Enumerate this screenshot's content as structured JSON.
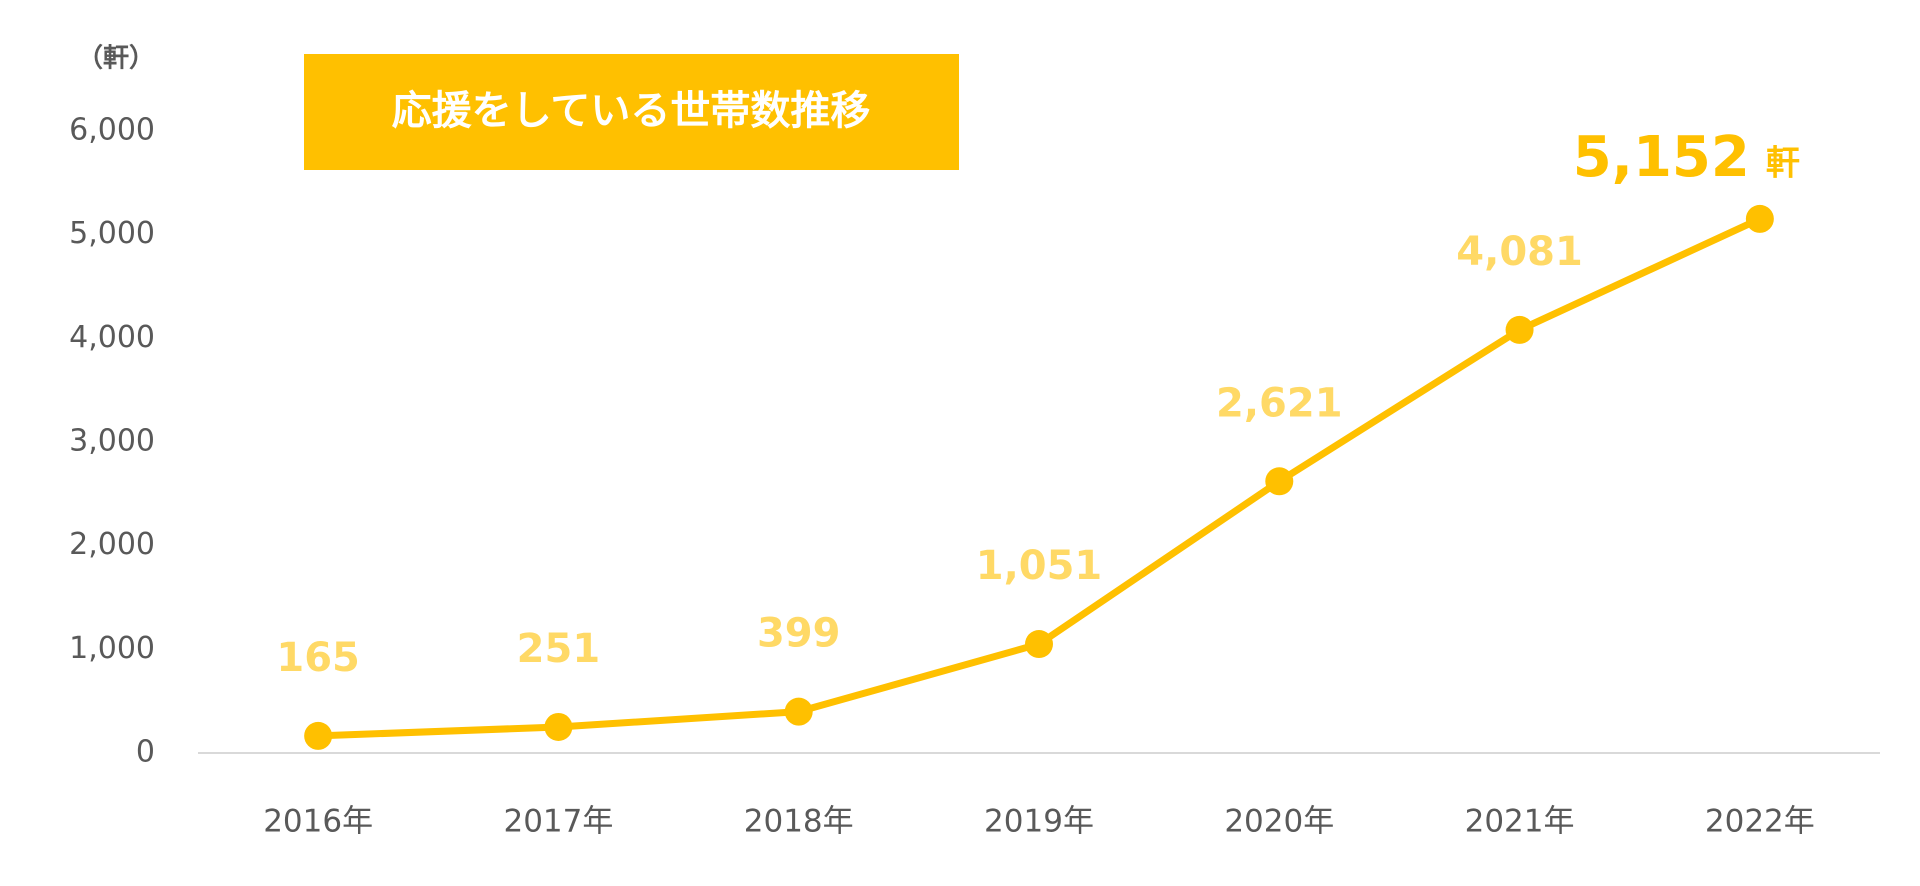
{
  "chart_data": {
    "type": "line",
    "title": "応援をしている世帯数推移",
    "y_axis_label": "（軒）",
    "categories": [
      "2016年",
      "2017年",
      "2018年",
      "2019年",
      "2020年",
      "2021年",
      "2022年"
    ],
    "series": [
      {
        "color": "#ffc000",
        "label_color": "#ffd966",
        "values": [
          165,
          251,
          399,
          1051,
          2621,
          4081,
          5152
        ],
        "value_labels": [
          "165",
          "251",
          "399",
          "1,051",
          "2,621",
          "4,081",
          "5,152"
        ]
      }
    ],
    "annotation": "軒",
    "ylim": [
      0,
      6000
    ],
    "yticks": [
      0,
      {
        "value": 1000,
        "label": "1,000"
      },
      {
        "value": 2000,
        "label": "2,000"
      },
      {
        "value": 3000,
        "label": "3,000"
      },
      {
        "value": 4000,
        "label": "4,000"
      },
      {
        "value": 5000,
        "label": "5,000"
      },
      {
        "value": 6000,
        "label": "6,000"
      }
    ],
    "grid": false
  }
}
